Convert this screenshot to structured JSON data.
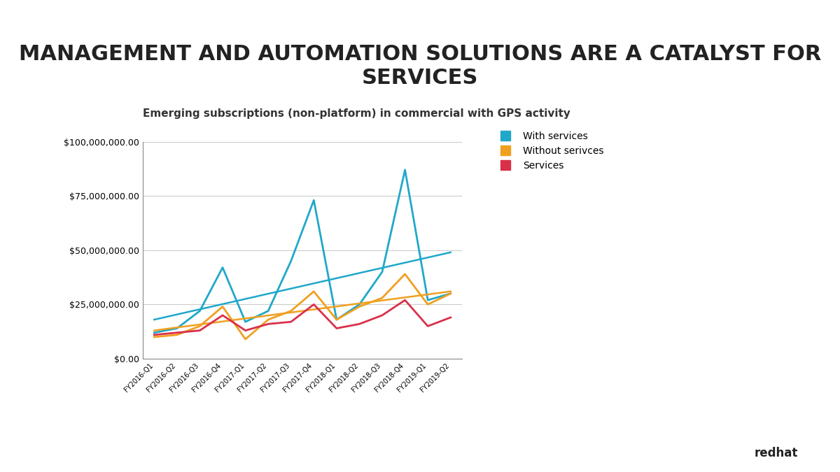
{
  "chart_data": {
    "type": "line",
    "title": "MANAGEMENT AND AUTOMATION SOLUTIONS ARE A CATALYST FOR SERVICES",
    "subtitle": "Emerging subscriptions (non-platform) in commercial with GPS activity",
    "footer": "redhat",
    "categories": [
      "FY2016-Q1",
      "FY2016-Q2",
      "FY2016-Q3",
      "FY2016-Q4",
      "FY2017-Q1",
      "FY2017-Q2",
      "FY2017-Q3",
      "FY2017-Q4",
      "FY2018-Q1",
      "FY2018-Q2",
      "FY2018-Q3",
      "FY2018-Q4",
      "FY2019-Q1",
      "FY2019-Q2"
    ],
    "series": [
      {
        "name": "With services",
        "color": "#1fa8c9",
        "values": [
          12000000,
          14000000,
          22000000,
          42000000,
          17000000,
          22000000,
          45000000,
          73000000,
          18000000,
          25000000,
          40000000,
          87000000,
          27000000,
          30000000
        ],
        "trend": {
          "start": 18000000,
          "end": 49000000
        }
      },
      {
        "name": "Without serivces",
        "color": "#f0a020",
        "values": [
          10000000,
          11000000,
          15000000,
          24000000,
          9000000,
          18000000,
          22000000,
          31000000,
          18000000,
          24000000,
          28000000,
          39000000,
          25000000,
          30000000
        ],
        "trend": {
          "start": 13000000,
          "end": 31000000
        }
      },
      {
        "name": "Services",
        "color": "#d9304a",
        "values": [
          11000000,
          12000000,
          13000000,
          20000000,
          13000000,
          16000000,
          17000000,
          25000000,
          14000000,
          16000000,
          20000000,
          27000000,
          15000000,
          19000000
        ]
      }
    ],
    "ylim": [
      0,
      100000000
    ],
    "yticks": [
      {
        "value": 0,
        "label": "$0.00"
      },
      {
        "value": 25000000,
        "label": "$25,000,000.00"
      },
      {
        "value": 50000000,
        "label": "$50,000,000.00"
      },
      {
        "value": 75000000,
        "label": "$75,000,000.00"
      },
      {
        "value": 100000000,
        "label": "$100,000,000.00"
      }
    ],
    "grid": "y",
    "legend": "upper left"
  }
}
